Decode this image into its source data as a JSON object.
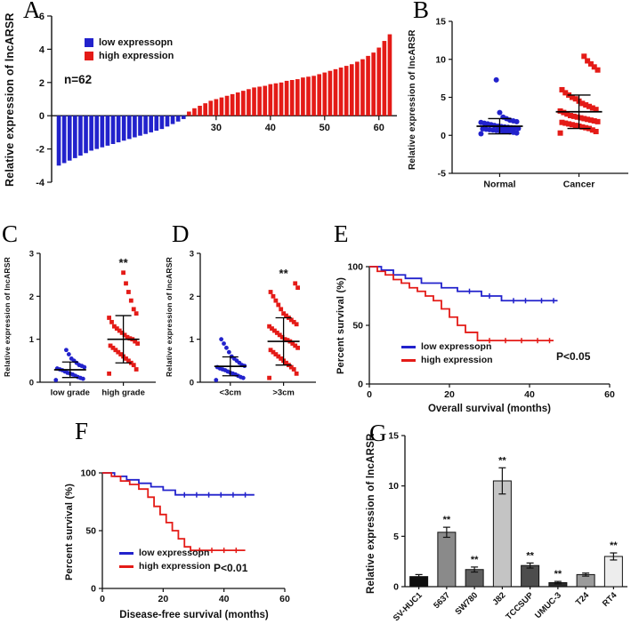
{
  "figure": {
    "description": "Multi-panel figure of lncARSR expression in bladder cancer",
    "panel_letters": [
      "A",
      "B",
      "C",
      "D",
      "E",
      "F",
      "G"
    ]
  },
  "colors": {
    "low_blue": "#2222cc",
    "high_red": "#e41b17",
    "axis_black": "#111111"
  },
  "chart_data": [
    {
      "id": "A",
      "type": "bar",
      "subtype": "waterfall",
      "ylabel": "Relative expression of lncARSR",
      "n_label": "n=62",
      "ylim": [
        -4,
        6
      ],
      "yticks": [
        -4,
        -2,
        0,
        2,
        4,
        6
      ],
      "xticks": [
        30,
        40,
        50,
        60
      ],
      "legend": [
        {
          "label": "low expressopn",
          "color": "#2222cc"
        },
        {
          "label": "high expression",
          "color": "#e41b17"
        }
      ],
      "values": [
        -3.0,
        -2.85,
        -2.7,
        -2.55,
        -2.4,
        -2.25,
        -2.1,
        -2.0,
        -1.9,
        -1.8,
        -1.7,
        -1.6,
        -1.5,
        -1.4,
        -1.3,
        -1.2,
        -1.1,
        -1.0,
        -0.9,
        -0.8,
        -0.65,
        -0.5,
        -0.35,
        -0.2,
        0.25,
        0.45,
        0.6,
        0.75,
        0.9,
        1.0,
        1.1,
        1.2,
        1.3,
        1.4,
        1.5,
        1.6,
        1.7,
        1.75,
        1.8,
        1.9,
        1.95,
        2.0,
        2.1,
        2.15,
        2.2,
        2.3,
        2.35,
        2.4,
        2.5,
        2.6,
        2.7,
        2.8,
        2.9,
        3.0,
        3.1,
        3.25,
        3.4,
        3.6,
        3.8,
        4.1,
        4.5,
        4.9
      ]
    },
    {
      "id": "B",
      "type": "scatter",
      "ylabel": "Relative expression of lncARSR",
      "ylim": [
        -5,
        15
      ],
      "yticks": [
        -5,
        0,
        5,
        10,
        15
      ],
      "groups": [
        {
          "label": "Normal",
          "marker": "circle",
          "color": "#2222cc",
          "mean": 1.2,
          "err": 1.0,
          "values": [
            0.2,
            0.3,
            0.4,
            0.45,
            0.5,
            0.55,
            0.6,
            0.65,
            0.7,
            0.75,
            0.8,
            0.85,
            0.9,
            0.95,
            1.0,
            1.05,
            1.1,
            1.15,
            1.2,
            1.3,
            1.4,
            1.5,
            1.6,
            1.7,
            1.8,
            1.9,
            2.0,
            2.2,
            2.4,
            3.0,
            7.3
          ]
        },
        {
          "label": "Cancer",
          "marker": "square",
          "color": "#e41b17",
          "mean": 3.1,
          "err": 2.2,
          "values": [
            0.3,
            0.5,
            0.7,
            0.9,
            1.0,
            1.1,
            1.2,
            1.3,
            1.4,
            1.5,
            1.6,
            1.7,
            1.8,
            1.9,
            2.0,
            2.1,
            2.2,
            2.3,
            2.4,
            2.5,
            2.6,
            2.8,
            3.0,
            3.2,
            3.4,
            3.6,
            3.8,
            4.0,
            4.2,
            4.5,
            4.8,
            5.0,
            5.3,
            5.6,
            6.0,
            8.6,
            9.0,
            9.4,
            9.8,
            10.4
          ]
        }
      ]
    },
    {
      "id": "C",
      "type": "scatter",
      "ylabel": "Relative expression of lncARSR",
      "ylim": [
        0,
        3
      ],
      "yticks": [
        0,
        1,
        2,
        3
      ],
      "groups": [
        {
          "label": "low grade",
          "marker": "circle",
          "color": "#2222cc",
          "mean": 0.29,
          "err": 0.18,
          "values": [
            0.05,
            0.08,
            0.1,
            0.12,
            0.15,
            0.18,
            0.2,
            0.22,
            0.25,
            0.28,
            0.3,
            0.32,
            0.35,
            0.38,
            0.4,
            0.45,
            0.5,
            0.55,
            0.65,
            0.75
          ]
        },
        {
          "label": "high grade",
          "marker": "square",
          "color": "#e41b17",
          "mean": 1.0,
          "err": 0.55,
          "sig": "**",
          "values": [
            0.2,
            0.3,
            0.4,
            0.45,
            0.5,
            0.55,
            0.6,
            0.65,
            0.7,
            0.75,
            0.8,
            0.85,
            0.9,
            0.95,
            1.0,
            1.02,
            1.05,
            1.1,
            1.15,
            1.2,
            1.25,
            1.3,
            1.4,
            1.5,
            1.6,
            1.7,
            1.9,
            2.1,
            2.3,
            2.55
          ]
        }
      ]
    },
    {
      "id": "D",
      "type": "scatter",
      "ylabel": "Relative expression of lncARSR",
      "ylim": [
        0,
        3
      ],
      "yticks": [
        0,
        1,
        2,
        3
      ],
      "groups": [
        {
          "label": "<3cm",
          "marker": "circle",
          "color": "#2222cc",
          "mean": 0.37,
          "err": 0.22,
          "values": [
            0.05,
            0.1,
            0.12,
            0.15,
            0.18,
            0.2,
            0.22,
            0.25,
            0.28,
            0.3,
            0.32,
            0.35,
            0.38,
            0.4,
            0.45,
            0.5,
            0.55,
            0.6,
            0.7,
            0.8,
            0.9,
            1.0
          ]
        },
        {
          "label": ">3cm",
          "marker": "square",
          "color": "#e41b17",
          "mean": 0.95,
          "err": 0.55,
          "sig": "**",
          "values": [
            0.1,
            0.2,
            0.3,
            0.35,
            0.4,
            0.45,
            0.5,
            0.55,
            0.6,
            0.65,
            0.7,
            0.75,
            0.8,
            0.85,
            0.9,
            0.95,
            0.98,
            1.0,
            1.05,
            1.1,
            1.15,
            1.2,
            1.25,
            1.3,
            1.35,
            1.4,
            1.45,
            1.5,
            1.55,
            1.6,
            1.7,
            1.8,
            1.9,
            2.0,
            2.1,
            2.2,
            2.3
          ]
        }
      ]
    },
    {
      "id": "E",
      "type": "line",
      "subtype": "kaplan-meier",
      "ylabel": "Percent survival (%)",
      "xlabel": "Overall survival (months)",
      "p_label": "P<0.05",
      "xlim": [
        0,
        60
      ],
      "xticks": [
        0,
        20,
        40,
        60
      ],
      "ylim": [
        0,
        100
      ],
      "yticks": [
        0,
        50,
        100
      ],
      "series": [
        {
          "name": "low expressopn",
          "color": "#2222cc",
          "points": [
            [
              0,
              100
            ],
            [
              3,
              100
            ],
            [
              3,
              97
            ],
            [
              6,
              97
            ],
            [
              6,
              93
            ],
            [
              9,
              93
            ],
            [
              9,
              90
            ],
            [
              13,
              90
            ],
            [
              13,
              86
            ],
            [
              18,
              86
            ],
            [
              18,
              82
            ],
            [
              22,
              82
            ],
            [
              22,
              79
            ],
            [
              28,
              79
            ],
            [
              28,
              75
            ],
            [
              33,
              75
            ],
            [
              33,
              71
            ],
            [
              47,
              71
            ]
          ],
          "censors": [
            [
              25,
              79
            ],
            [
              30,
              75
            ],
            [
              36,
              71
            ],
            [
              39,
              71
            ],
            [
              43,
              71
            ],
            [
              46,
              71
            ]
          ]
        },
        {
          "name": "high expression",
          "color": "#e41b17",
          "points": [
            [
              0,
              100
            ],
            [
              2,
              100
            ],
            [
              2,
              96
            ],
            [
              4,
              96
            ],
            [
              4,
              93
            ],
            [
              6,
              93
            ],
            [
              6,
              89
            ],
            [
              8,
              89
            ],
            [
              8,
              86
            ],
            [
              10,
              86
            ],
            [
              10,
              82
            ],
            [
              12,
              82
            ],
            [
              12,
              79
            ],
            [
              14,
              79
            ],
            [
              14,
              75
            ],
            [
              16,
              75
            ],
            [
              16,
              71
            ],
            [
              18,
              71
            ],
            [
              18,
              64
            ],
            [
              20,
              64
            ],
            [
              20,
              57
            ],
            [
              22,
              57
            ],
            [
              22,
              50
            ],
            [
              24,
              50
            ],
            [
              24,
              44
            ],
            [
              27,
              44
            ],
            [
              27,
              37
            ],
            [
              46,
              37
            ]
          ],
          "censors": [
            [
              30,
              37
            ],
            [
              34,
              37
            ],
            [
              38,
              37
            ],
            [
              42,
              37
            ],
            [
              45,
              37
            ]
          ]
        }
      ]
    },
    {
      "id": "F",
      "type": "line",
      "subtype": "kaplan-meier",
      "ylabel": "Percent survival (%)",
      "xlabel": "Disease-free survival (months)",
      "p_label": "P<0.01",
      "xlim": [
        0,
        60
      ],
      "xticks": [
        0,
        20,
        40,
        60
      ],
      "ylim": [
        0,
        100
      ],
      "yticks": [
        0,
        50,
        100
      ],
      "series": [
        {
          "name": "low expressopn",
          "color": "#2222cc",
          "points": [
            [
              0,
              100
            ],
            [
              4,
              100
            ],
            [
              4,
              97
            ],
            [
              8,
              97
            ],
            [
              8,
              94
            ],
            [
              12,
              94
            ],
            [
              12,
              91
            ],
            [
              16,
              91
            ],
            [
              16,
              88
            ],
            [
              20,
              88
            ],
            [
              20,
              85
            ],
            [
              24,
              85
            ],
            [
              24,
              81
            ],
            [
              50,
              81
            ]
          ],
          "censors": [
            [
              27,
              81
            ],
            [
              31,
              81
            ],
            [
              35,
              81
            ],
            [
              39,
              81
            ],
            [
              43,
              81
            ],
            [
              47,
              81
            ]
          ]
        },
        {
          "name": "high expression",
          "color": "#e41b17",
          "points": [
            [
              0,
              100
            ],
            [
              3,
              100
            ],
            [
              3,
              97
            ],
            [
              6,
              97
            ],
            [
              6,
              93
            ],
            [
              9,
              93
            ],
            [
              9,
              90
            ],
            [
              12,
              90
            ],
            [
              12,
              86
            ],
            [
              15,
              86
            ],
            [
              15,
              79
            ],
            [
              17,
              79
            ],
            [
              17,
              71
            ],
            [
              19,
              71
            ],
            [
              19,
              64
            ],
            [
              21,
              64
            ],
            [
              21,
              57
            ],
            [
              23,
              57
            ],
            [
              23,
              50
            ],
            [
              25,
              50
            ],
            [
              25,
              43
            ],
            [
              27,
              43
            ],
            [
              27,
              36
            ],
            [
              29,
              36
            ],
            [
              29,
              33
            ],
            [
              47,
              33
            ]
          ],
          "censors": [
            [
              32,
              33
            ],
            [
              36,
              33
            ],
            [
              40,
              33
            ],
            [
              44,
              33
            ]
          ]
        }
      ]
    },
    {
      "id": "G",
      "type": "bar",
      "ylabel": "Relative expression of lncARSR",
      "ylim": [
        0,
        15
      ],
      "yticks": [
        0,
        5,
        10,
        15
      ],
      "categories": [
        "SV-HUC1",
        "5637",
        "SW780",
        "J82",
        "TCCSUP",
        "UMUC-3",
        "T24",
        "RT4"
      ],
      "values": [
        1.0,
        5.4,
        1.7,
        10.5,
        2.1,
        0.4,
        1.2,
        3.0
      ],
      "errors": [
        0.2,
        0.5,
        0.25,
        1.3,
        0.25,
        0.12,
        0.15,
        0.35
      ],
      "colors": [
        "#0d0d0d",
        "#8a8a8a",
        "#5f5f5f",
        "#c4c4c4",
        "#4d4d4d",
        "#2b2b2b",
        "#9b9b9b",
        "#ededed"
      ],
      "sig": [
        "",
        "**",
        "**",
        "**",
        "**",
        "**",
        "",
        "**"
      ]
    }
  ]
}
